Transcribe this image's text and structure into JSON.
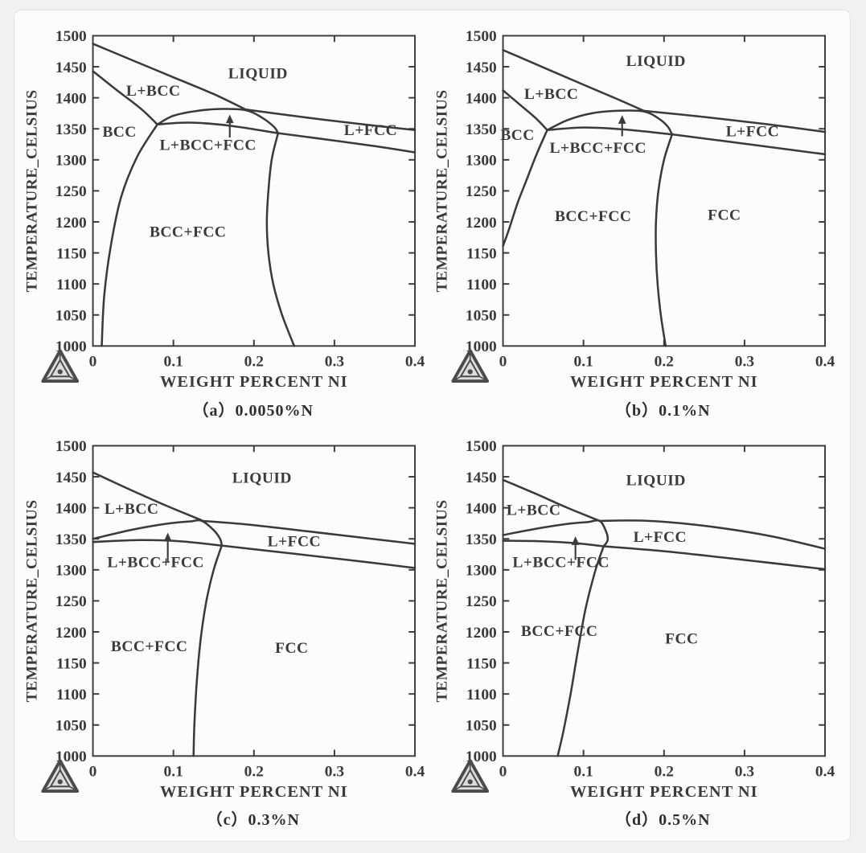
{
  "page": {
    "background_color": "#f2f2f2",
    "card_background": "#fcfcfc",
    "card_border_color": "#e2e2e2"
  },
  "colors": {
    "line": "#3a3a3a",
    "text": "#3a3a3a"
  },
  "branding": {
    "logo_icon": "thermo-calc-triangle-logo"
  },
  "chart_data": [
    {
      "id": "a",
      "type": "line",
      "caption": "（a）0.0050%N",
      "nitrogen_content": "0.0050%N",
      "xlabel": "WEIGHT PERCENT NI",
      "ylabel": "TEMPERATURE_CELSIUS",
      "xlim": [
        0,
        0.4
      ],
      "ylim": [
        1000,
        1500
      ],
      "xticks": [
        "0",
        "0.1",
        "0.2",
        "0.3",
        "0.4"
      ],
      "yticks": [
        1000,
        1050,
        1100,
        1150,
        1200,
        1250,
        1300,
        1350,
        1400,
        1450,
        1500
      ],
      "region_labels": [
        {
          "text": "LIQUID",
          "x": 0.205,
          "y": 1440
        },
        {
          "text": "L+BCC",
          "x": 0.075,
          "y": 1412
        },
        {
          "text": "BCC",
          "x": 0.033,
          "y": 1346
        },
        {
          "text": "L+BCC+FCC",
          "x": 0.143,
          "y": 1325
        },
        {
          "text": "L+FCC",
          "x": 0.345,
          "y": 1349
        },
        {
          "text": "BCC+FCC",
          "x": 0.118,
          "y": 1185
        }
      ],
      "series": [
        {
          "name": "liquidus-l-bcc",
          "points": [
            [
              0,
              1487
            ],
            [
              0.05,
              1460
            ],
            [
              0.1,
              1433
            ],
            [
              0.15,
              1406
            ],
            [
              0.19,
              1381
            ]
          ]
        },
        {
          "name": "bcc-solidus",
          "points": [
            [
              0,
              1443
            ],
            [
              0.03,
              1412
            ],
            [
              0.06,
              1382
            ],
            [
              0.08,
              1357
            ]
          ]
        },
        {
          "name": "fcc-dome",
          "points": [
            [
              0.08,
              1357
            ],
            [
              0.1,
              1371
            ],
            [
              0.13,
              1379
            ],
            [
              0.16,
              1382
            ],
            [
              0.19,
              1380
            ],
            [
              0.21,
              1368
            ],
            [
              0.225,
              1353
            ],
            [
              0.23,
              1343
            ]
          ]
        },
        {
          "name": "liquidus-l-fcc",
          "points": [
            [
              0.19,
              1381
            ],
            [
              0.26,
              1369
            ],
            [
              0.33,
              1358
            ],
            [
              0.4,
              1348
            ]
          ]
        },
        {
          "name": "three-phase-bottom",
          "points": [
            [
              0.08,
              1357
            ],
            [
              0.12,
              1360
            ],
            [
              0.17,
              1355
            ],
            [
              0.23,
              1343
            ]
          ]
        },
        {
          "name": "fcc-solidus",
          "points": [
            [
              0.23,
              1343
            ],
            [
              0.3,
              1331
            ],
            [
              0.35,
              1322
            ],
            [
              0.4,
              1312
            ]
          ]
        },
        {
          "name": "bcc-bccfcc-boundary",
          "points": [
            [
              0.08,
              1357
            ],
            [
              0.055,
              1305
            ],
            [
              0.035,
              1240
            ],
            [
              0.022,
              1160
            ],
            [
              0.014,
              1080
            ],
            [
              0.011,
              1000
            ]
          ]
        },
        {
          "name": "bccfcc-fcc-boundary",
          "points": [
            [
              0.23,
              1343
            ],
            [
              0.222,
              1300
            ],
            [
              0.218,
              1250
            ],
            [
              0.216,
              1200
            ],
            [
              0.218,
              1150
            ],
            [
              0.224,
              1100
            ],
            [
              0.235,
              1050
            ],
            [
              0.25,
              1000
            ]
          ]
        }
      ],
      "arrow": {
        "x": 0.17,
        "y_from": 1336,
        "y_to": 1373
      }
    },
    {
      "id": "b",
      "type": "line",
      "caption": "（b）0.1%N",
      "nitrogen_content": "0.1%N",
      "xlabel": "WEIGHT PERCENT NI",
      "ylabel": "TEMPERATURE_CELSIUS",
      "xlim": [
        0,
        0.4
      ],
      "ylim": [
        1000,
        1500
      ],
      "xticks": [
        "0",
        "0.1",
        "0.2",
        "0.3",
        "0.4"
      ],
      "yticks": [
        1000,
        1050,
        1100,
        1150,
        1200,
        1250,
        1300,
        1350,
        1400,
        1450,
        1500
      ],
      "region_labels": [
        {
          "text": "LIQUID",
          "x": 0.19,
          "y": 1460
        },
        {
          "text": "L+BCC",
          "x": 0.06,
          "y": 1407
        },
        {
          "text": "BCC",
          "x": 0.018,
          "y": 1341
        },
        {
          "text": "L+BCC+FCC",
          "x": 0.118,
          "y": 1320
        },
        {
          "text": "L+FCC",
          "x": 0.31,
          "y": 1347
        },
        {
          "text": "BCC+FCC",
          "x": 0.112,
          "y": 1210
        },
        {
          "text": "FCC",
          "x": 0.275,
          "y": 1212
        }
      ],
      "series": [
        {
          "name": "liquidus-l-bcc",
          "points": [
            [
              0,
              1477
            ],
            [
              0.05,
              1449
            ],
            [
              0.1,
              1421
            ],
            [
              0.14,
              1399
            ],
            [
              0.175,
              1379
            ]
          ]
        },
        {
          "name": "bcc-solidus",
          "points": [
            [
              0,
              1412
            ],
            [
              0.02,
              1390
            ],
            [
              0.04,
              1368
            ],
            [
              0.055,
              1348
            ]
          ]
        },
        {
          "name": "fcc-dome",
          "points": [
            [
              0.055,
              1348
            ],
            [
              0.08,
              1364
            ],
            [
              0.11,
              1375
            ],
            [
              0.14,
              1379
            ],
            [
              0.175,
              1378
            ],
            [
              0.195,
              1365
            ],
            [
              0.205,
              1353
            ],
            [
              0.21,
              1341
            ]
          ]
        },
        {
          "name": "liquidus-l-fcc",
          "points": [
            [
              0.175,
              1379
            ],
            [
              0.25,
              1369
            ],
            [
              0.33,
              1357
            ],
            [
              0.4,
              1345
            ]
          ]
        },
        {
          "name": "three-phase-bottom",
          "points": [
            [
              0.055,
              1348
            ],
            [
              0.1,
              1352
            ],
            [
              0.15,
              1349
            ],
            [
              0.21,
              1341
            ]
          ]
        },
        {
          "name": "fcc-solidus",
          "points": [
            [
              0.21,
              1341
            ],
            [
              0.3,
              1326
            ],
            [
              0.4,
              1309
            ]
          ]
        },
        {
          "name": "bcc-bccfcc-boundary",
          "points": [
            [
              0.055,
              1348
            ],
            [
              0.042,
              1310
            ],
            [
              0.03,
              1270
            ],
            [
              0.018,
              1230
            ],
            [
              0.008,
              1190
            ],
            [
              0,
              1161
            ]
          ]
        },
        {
          "name": "bccfcc-fcc-boundary",
          "points": [
            [
              0.21,
              1341
            ],
            [
              0.2,
              1300
            ],
            [
              0.193,
              1250
            ],
            [
              0.19,
              1200
            ],
            [
              0.19,
              1150
            ],
            [
              0.192,
              1100
            ],
            [
              0.196,
              1050
            ],
            [
              0.202,
              1000
            ]
          ]
        }
      ],
      "arrow": {
        "x": 0.148,
        "y_from": 1338,
        "y_to": 1372
      }
    },
    {
      "id": "c",
      "type": "line",
      "caption": "（c）0.3%N",
      "nitrogen_content": "0.3%N",
      "xlabel": "WEIGHT PERCENT NI",
      "ylabel": "TEMPERATURE_CELSIUS",
      "xlim": [
        0,
        0.4
      ],
      "ylim": [
        1000,
        1500
      ],
      "xticks": [
        "0",
        "0.1",
        "0.2",
        "0.3",
        "0.4"
      ],
      "yticks": [
        1000,
        1050,
        1100,
        1150,
        1200,
        1250,
        1300,
        1350,
        1400,
        1450,
        1500
      ],
      "region_labels": [
        {
          "text": "LIQUID",
          "x": 0.21,
          "y": 1449
        },
        {
          "text": "L+BCC",
          "x": 0.048,
          "y": 1399
        },
        {
          "text": "L+BCC+FCC",
          "x": 0.078,
          "y": 1313
        },
        {
          "text": "L+FCC",
          "x": 0.25,
          "y": 1347
        },
        {
          "text": "BCC+FCC",
          "x": 0.07,
          "y": 1178
        },
        {
          "text": "FCC",
          "x": 0.247,
          "y": 1175
        }
      ],
      "series": [
        {
          "name": "liquidus-l-bcc",
          "points": [
            [
              0,
              1457
            ],
            [
              0.045,
              1430
            ],
            [
              0.09,
              1404
            ],
            [
              0.135,
              1380
            ]
          ]
        },
        {
          "name": "fcc-dome",
          "points": [
            [
              0,
              1350
            ],
            [
              0.05,
              1365
            ],
            [
              0.09,
              1374
            ],
            [
              0.12,
              1378
            ],
            [
              0.135,
              1379
            ],
            [
              0.15,
              1364
            ],
            [
              0.158,
              1350
            ],
            [
              0.16,
              1339
            ]
          ]
        },
        {
          "name": "liquidus-l-fcc",
          "points": [
            [
              0.135,
              1379
            ],
            [
              0.2,
              1372
            ],
            [
              0.3,
              1357
            ],
            [
              0.4,
              1342
            ]
          ]
        },
        {
          "name": "three-phase-bottom",
          "points": [
            [
              0,
              1345
            ],
            [
              0.06,
              1348
            ],
            [
              0.11,
              1346
            ],
            [
              0.16,
              1339
            ]
          ]
        },
        {
          "name": "fcc-solidus",
          "points": [
            [
              0.16,
              1339
            ],
            [
              0.25,
              1326
            ],
            [
              0.33,
              1314
            ],
            [
              0.4,
              1303
            ]
          ]
        },
        {
          "name": "bccfcc-fcc-boundary",
          "points": [
            [
              0.16,
              1339
            ],
            [
              0.15,
              1300
            ],
            [
              0.141,
              1250
            ],
            [
              0.134,
              1190
            ],
            [
              0.129,
              1120
            ],
            [
              0.126,
              1050
            ],
            [
              0.125,
              1000
            ]
          ]
        }
      ],
      "arrow": {
        "x": 0.093,
        "y_from": 1312,
        "y_to": 1360
      }
    },
    {
      "id": "d",
      "type": "line",
      "caption": "（d）0.5%N",
      "nitrogen_content": "0.5%N",
      "xlabel": "WEIGHT PERCENT NI",
      "ylabel": "TEMPERATURE_CELSIUS",
      "xlim": [
        0,
        0.4
      ],
      "ylim": [
        1000,
        1500
      ],
      "xticks": [
        "0",
        "0.1",
        "0.2",
        "0.3",
        "0.4"
      ],
      "yticks": [
        1000,
        1050,
        1100,
        1150,
        1200,
        1250,
        1300,
        1350,
        1400,
        1450,
        1500
      ],
      "region_labels": [
        {
          "text": "LIQUID",
          "x": 0.19,
          "y": 1445
        },
        {
          "text": "L+BCC",
          "x": 0.038,
          "y": 1397
        },
        {
          "text": "L+BCC+FCC",
          "x": 0.072,
          "y": 1313
        },
        {
          "text": "L+FCC",
          "x": 0.195,
          "y": 1354
        },
        {
          "text": "BCC+FCC",
          "x": 0.07,
          "y": 1202
        },
        {
          "text": "FCC",
          "x": 0.222,
          "y": 1190
        }
      ],
      "series": [
        {
          "name": "liquidus-l-bcc",
          "points": [
            [
              0,
              1445
            ],
            [
              0.04,
              1423
            ],
            [
              0.08,
              1400
            ],
            [
              0.12,
              1379
            ]
          ]
        },
        {
          "name": "fcc-dome",
          "points": [
            [
              0,
              1356
            ],
            [
              0.04,
              1366
            ],
            [
              0.08,
              1374
            ],
            [
              0.105,
              1377
            ],
            [
              0.12,
              1379
            ],
            [
              0.128,
              1362
            ],
            [
              0.13,
              1348
            ],
            [
              0.125,
              1338
            ]
          ]
        },
        {
          "name": "liquidus-l-fcc",
          "points": [
            [
              0.12,
              1379
            ],
            [
              0.18,
              1379
            ],
            [
              0.25,
              1371
            ],
            [
              0.33,
              1355
            ],
            [
              0.4,
              1334
            ]
          ]
        },
        {
          "name": "three-phase-bottom",
          "points": [
            [
              0,
              1347
            ],
            [
              0.05,
              1346
            ],
            [
              0.09,
              1343
            ],
            [
              0.125,
              1338
            ]
          ]
        },
        {
          "name": "fcc-solidus",
          "points": [
            [
              0.125,
              1338
            ],
            [
              0.2,
              1330
            ],
            [
              0.3,
              1316
            ],
            [
              0.4,
              1301
            ]
          ]
        },
        {
          "name": "bccfcc-fcc-boundary",
          "points": [
            [
              0.125,
              1338
            ],
            [
              0.115,
              1300
            ],
            [
              0.103,
              1240
            ],
            [
              0.093,
              1170
            ],
            [
              0.084,
              1100
            ],
            [
              0.075,
              1040
            ],
            [
              0.068,
              1000
            ]
          ]
        }
      ],
      "arrow": {
        "x": 0.09,
        "y_from": 1316,
        "y_to": 1354
      }
    }
  ]
}
